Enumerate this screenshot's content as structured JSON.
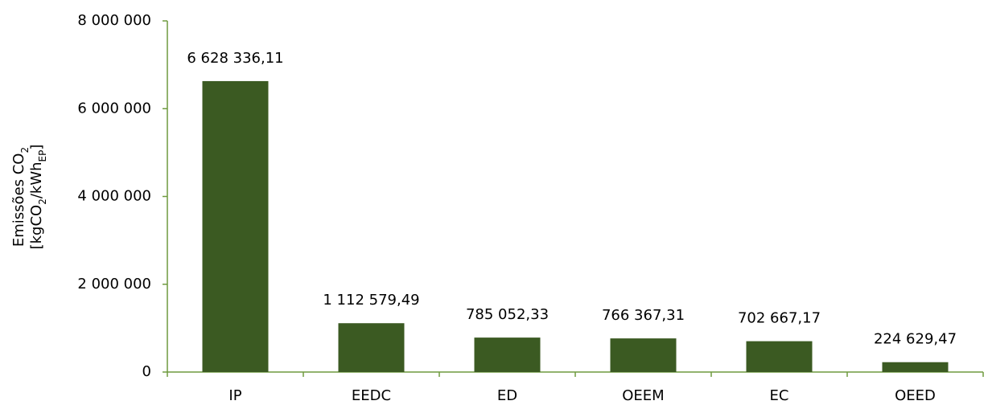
{
  "chart_data": {
    "type": "bar",
    "y_label": [
      [
        "Emissões CO",
        "2"
      ],
      [
        "[kgCO",
        "2",
        "/kWh",
        "EP",
        "]"
      ]
    ],
    "categories": [
      "IP",
      "EEDC",
      "ED",
      "OEEM",
      "EC",
      "OEED"
    ],
    "values": [
      6628336.11,
      1112579.49,
      785052.33,
      766367.31,
      702667.17,
      224629.47
    ],
    "value_labels": [
      "6 628 336,11",
      "1 112 579,49",
      "785 052,33",
      "766 367,31",
      "702 667,17",
      "224 629,47"
    ],
    "color": "#3b5a22",
    "ylim": [
      0,
      8000000
    ],
    "yticks": [
      0,
      {
        "value": 2000000,
        "label": "2 000 000"
      },
      {
        "value": 4000000,
        "label": "4 000 000"
      },
      {
        "value": 6000000,
        "label": "6 000 000"
      },
      {
        "value": 8000000,
        "label": "8 000 000"
      }
    ]
  }
}
